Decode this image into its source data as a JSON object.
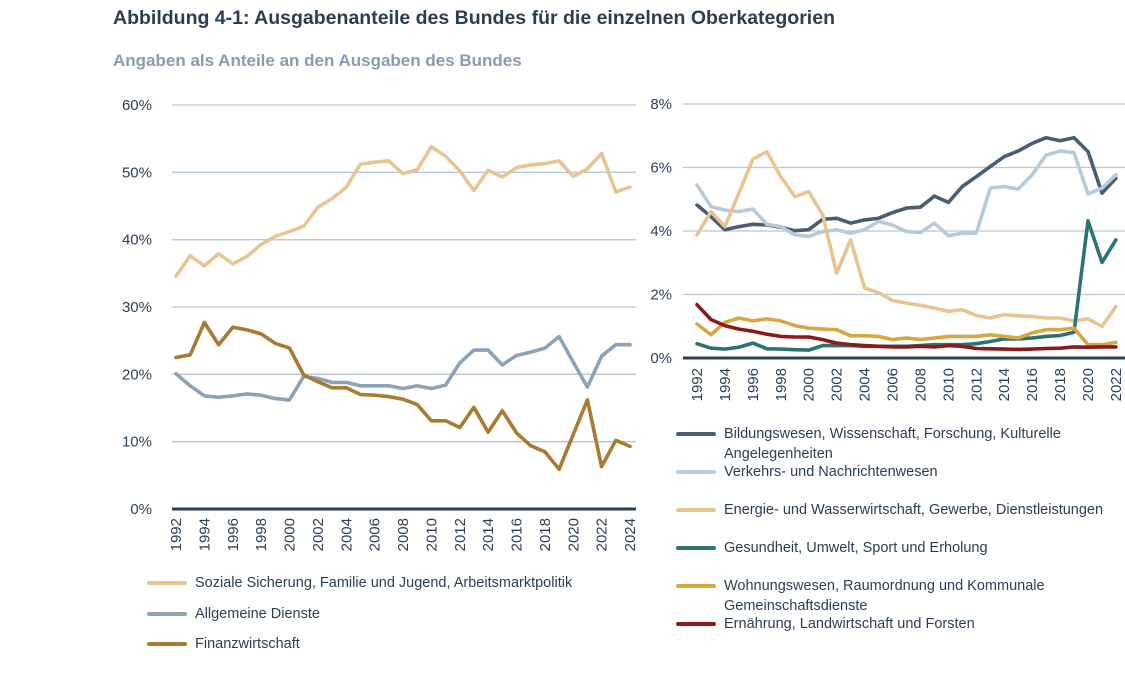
{
  "header": {
    "title": "Abbildung 4-1: Ausgabenanteile des Bundes für die einzelnen Oberkategorien",
    "subtitle": "Angaben als Anteile an den Ausgaben des Bundes"
  },
  "chart_data": [
    {
      "type": "line",
      "ylim": [
        0,
        60
      ],
      "yticks": [
        "0%",
        "10%",
        "20%",
        "30%",
        "40%",
        "50%",
        "60%"
      ],
      "xticks": [
        "1992",
        "1994",
        "1996",
        "1998",
        "2000",
        "2002",
        "2004",
        "2006",
        "2008",
        "2010",
        "2012",
        "2014",
        "2016",
        "2018",
        "2020",
        "2022",
        "2024"
      ],
      "x": [
        1992,
        1993,
        1994,
        1995,
        1996,
        1997,
        1998,
        1999,
        2000,
        2001,
        2002,
        2003,
        2004,
        2005,
        2006,
        2007,
        2008,
        2009,
        2010,
        2011,
        2012,
        2013,
        2014,
        2015,
        2016,
        2017,
        2018,
        2019,
        2020,
        2021,
        2022,
        2023,
        2024
      ],
      "grid": true,
      "legend": "bottom",
      "series": [
        {
          "name": "Soziale Sicherung, Familie und Jugend, Arbeitsmarktpolitik",
          "color": "#e6c593",
          "values": [
            34.6,
            37.6,
            36.1,
            37.9,
            36.4,
            37.5,
            39.3,
            40.5,
            41.2,
            42.0,
            44.8,
            46.1,
            47.8,
            51.2,
            51.5,
            51.7,
            49.8,
            50.4,
            53.8,
            52.4,
            50.2,
            47.3,
            50.3,
            49.3,
            50.7,
            51.1,
            51.3,
            51.7,
            49.4,
            50.5,
            52.8,
            47.1,
            47.8
          ]
        },
        {
          "name": "Allgemeine Dienste",
          "color": "#8ea2b5",
          "values": [
            20.1,
            18.3,
            16.8,
            16.6,
            16.8,
            17.1,
            16.9,
            16.4,
            16.2,
            19.7,
            19.4,
            18.8,
            18.8,
            18.3,
            18.3,
            18.3,
            17.9,
            18.3,
            17.9,
            18.4,
            21.7,
            23.6,
            23.6,
            21.4,
            22.8,
            23.3,
            23.9,
            25.6,
            21.8,
            18.1,
            22.7,
            24.4,
            24.4
          ]
        },
        {
          "name": "Finanzwirtschaft",
          "color": "#a87a32",
          "values": [
            22.5,
            22.9,
            27.7,
            24.4,
            27.0,
            26.6,
            26.0,
            24.6,
            23.9,
            19.9,
            18.9,
            18.0,
            18.0,
            17.0,
            16.9,
            16.7,
            16.3,
            15.5,
            13.1,
            13.1,
            12.1,
            15.1,
            11.4,
            14.6,
            11.3,
            9.4,
            8.5,
            5.9,
            11.1,
            16.2,
            6.3,
            10.2,
            9.3
          ]
        }
      ]
    },
    {
      "type": "line",
      "ylim": [
        0,
        8
      ],
      "yticks": [
        "0%",
        "2%",
        "4%",
        "6%",
        "8%"
      ],
      "xticks": [
        "1992",
        "1994",
        "1996",
        "1998",
        "2000",
        "2002",
        "2004",
        "2006",
        "2008",
        "2010",
        "2012",
        "2014",
        "2016",
        "2018",
        "2020",
        "2022"
      ],
      "x": [
        1992,
        1993,
        1994,
        1995,
        1996,
        1997,
        1998,
        1999,
        2000,
        2001,
        2002,
        2003,
        2004,
        2005,
        2006,
        2007,
        2008,
        2009,
        2010,
        2011,
        2012,
        2013,
        2014,
        2015,
        2016,
        2017,
        2018,
        2019,
        2020,
        2021,
        2022
      ],
      "grid": true,
      "legend": "bottom",
      "series": [
        {
          "name": "Bildungswesen, Wissenschaft, Forschung, Kulturelle Angelegenheiten",
          "color": "#4a5d73",
          "values": [
            4.82,
            4.45,
            4.04,
            4.14,
            4.21,
            4.19,
            4.12,
            4.01,
            4.04,
            4.37,
            4.4,
            4.25,
            4.35,
            4.4,
            4.58,
            4.72,
            4.75,
            5.1,
            4.9,
            5.4,
            5.71,
            6.03,
            6.34,
            6.52,
            6.76,
            6.94,
            6.84,
            6.94,
            6.5,
            5.19,
            5.66
          ]
        },
        {
          "name": "Verkehrs- und Nachrichtenwesen",
          "color": "#b8c9d9",
          "values": [
            5.45,
            4.77,
            4.66,
            4.61,
            4.69,
            4.21,
            4.14,
            3.88,
            3.83,
            3.98,
            4.04,
            3.93,
            4.04,
            4.3,
            4.19,
            3.98,
            3.95,
            4.25,
            3.85,
            3.93,
            3.93,
            5.35,
            5.4,
            5.32,
            5.77,
            6.39,
            6.52,
            6.47,
            5.17,
            5.35,
            5.77
          ]
        },
        {
          "name": "Energie- und Wasserwirtschaft, Gewerbe, Dienstleistungen",
          "color": "#e6c593",
          "values": [
            3.88,
            4.61,
            4.14,
            5.19,
            6.26,
            6.5,
            5.71,
            5.08,
            5.24,
            4.51,
            2.67,
            3.72,
            2.2,
            2.06,
            1.81,
            1.73,
            1.66,
            1.57,
            1.47,
            1.52,
            1.34,
            1.26,
            1.36,
            1.33,
            1.31,
            1.26,
            1.26,
            1.17,
            1.23,
            1.0,
            1.62
          ]
        },
        {
          "name": "Gesundheit, Umwelt, Sport und Erholung",
          "color": "#2c7373",
          "values": [
            0.45,
            0.31,
            0.28,
            0.34,
            0.47,
            0.29,
            0.28,
            0.26,
            0.25,
            0.39,
            0.39,
            0.39,
            0.37,
            0.37,
            0.37,
            0.37,
            0.39,
            0.42,
            0.42,
            0.42,
            0.45,
            0.52,
            0.6,
            0.6,
            0.63,
            0.68,
            0.71,
            0.81,
            4.32,
            3.01,
            3.72
          ]
        },
        {
          "name": "Wohnungswesen, Raumordnung und Kommunale Gemeinschaftsdienste",
          "color": "#d4a843",
          "values": [
            1.07,
            0.73,
            1.12,
            1.26,
            1.17,
            1.23,
            1.17,
            1.02,
            0.94,
            0.91,
            0.89,
            0.7,
            0.7,
            0.68,
            0.58,
            0.63,
            0.58,
            0.63,
            0.68,
            0.68,
            0.68,
            0.73,
            0.68,
            0.63,
            0.79,
            0.89,
            0.89,
            0.94,
            0.42,
            0.42,
            0.49
          ]
        },
        {
          "name": "Ernährung, Landwirtschaft und Forsten",
          "color": "#8b1a1a",
          "values": [
            1.68,
            1.21,
            1.02,
            0.91,
            0.84,
            0.75,
            0.68,
            0.66,
            0.66,
            0.58,
            0.47,
            0.42,
            0.39,
            0.37,
            0.35,
            0.35,
            0.37,
            0.35,
            0.39,
            0.37,
            0.3,
            0.29,
            0.28,
            0.27,
            0.28,
            0.3,
            0.31,
            0.35,
            0.34,
            0.35,
            0.35
          ]
        }
      ]
    }
  ]
}
